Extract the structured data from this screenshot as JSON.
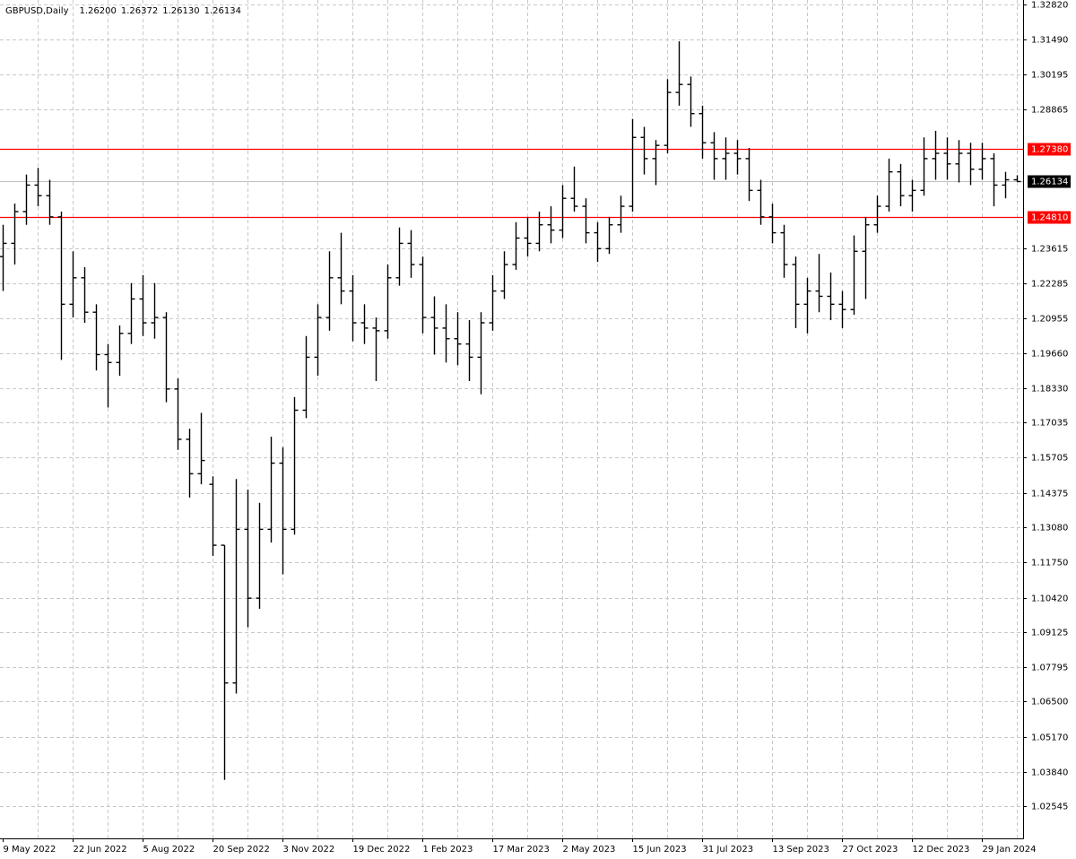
{
  "chart_data": {
    "type": "ohlc",
    "title": "GBPUSD,Daily",
    "header_values": [
      {
        "value": 1.262,
        "label": "1.26200"
      },
      {
        "value": 1.26372,
        "label": "1.26372"
      },
      {
        "value": 1.2613,
        "label": "1.26130"
      },
      {
        "value": 1.26134,
        "label": "1.26134"
      }
    ],
    "categories": [
      "9 May 2022",
      null,
      null,
      null,
      null,
      null,
      "22 Jun 2022",
      null,
      null,
      null,
      null,
      null,
      "5 Aug 2022",
      null,
      null,
      null,
      null,
      null,
      "20 Sep 2022",
      null,
      null,
      null,
      null,
      null,
      "3 Nov 2022",
      null,
      null,
      null,
      null,
      null,
      "19 Dec 2022",
      null,
      null,
      null,
      null,
      null,
      "1 Feb 2023",
      null,
      null,
      null,
      null,
      null,
      "17 Mar 2023",
      null,
      null,
      null,
      null,
      null,
      "2 May 2023",
      null,
      null,
      null,
      null,
      null,
      "15 Jun 2023",
      null,
      null,
      null,
      null,
      null,
      "31 Jul 2023",
      null,
      null,
      null,
      null,
      null,
      "13 Sep 2023",
      null,
      null,
      null,
      null,
      null,
      "27 Oct 2023",
      null,
      null,
      null,
      null,
      null,
      "12 Dec 2023",
      null,
      null,
      null,
      null,
      null,
      "29 Jan 2024",
      null,
      null,
      null
    ],
    "open": [
      1.233,
      1.238,
      1.25,
      1.26,
      1.256,
      1.248,
      1.215,
      1.225,
      1.212,
      1.196,
      1.193,
      1.204,
      1.217,
      1.208,
      1.21,
      1.183,
      1.164,
      1.151,
      1.147,
      1.124,
      1.072,
      1.13,
      1.104,
      1.13,
      1.155,
      1.13,
      1.175,
      1.195,
      1.21,
      1.225,
      1.22,
      1.208,
      1.206,
      1.205,
      1.225,
      1.238,
      1.23,
      1.21,
      1.206,
      1.202,
      1.2,
      1.195,
      1.208,
      1.22,
      1.23,
      1.24,
      1.238,
      1.245,
      1.243,
      1.255,
      1.252,
      1.242,
      1.236,
      1.245,
      1.252,
      1.278,
      1.27,
      1.275,
      1.295,
      1.298,
      1.287,
      1.276,
      1.27,
      1.272,
      1.27,
      1.258,
      1.248,
      1.242,
      1.23,
      1.215,
      1.22,
      1.218,
      1.215,
      1.213,
      1.235,
      1.245,
      1.252,
      1.265,
      1.256,
      1.258,
      1.27,
      1.272,
      1.268,
      1.272,
      1.266,
      1.27,
      1.26,
      1.262
    ],
    "high": [
      1.245,
      1.253,
      1.264,
      1.2665,
      1.262,
      1.25,
      1.235,
      1.229,
      1.215,
      1.2,
      1.207,
      1.223,
      1.226,
      1.223,
      1.212,
      1.187,
      1.168,
      1.174,
      1.15,
      1.124,
      1.149,
      1.145,
      1.14,
      1.165,
      1.161,
      1.18,
      1.203,
      1.215,
      1.235,
      1.242,
      1.226,
      1.215,
      1.21,
      1.23,
      1.244,
      1.243,
      1.233,
      1.218,
      1.215,
      1.212,
      1.209,
      1.212,
      1.226,
      1.235,
      1.246,
      1.248,
      1.25,
      1.252,
      1.26,
      1.267,
      1.255,
      1.246,
      1.248,
      1.256,
      1.285,
      1.282,
      1.277,
      1.3,
      1.3143,
      1.301,
      1.29,
      1.28,
      1.278,
      1.277,
      1.274,
      1.262,
      1.253,
      1.245,
      1.233,
      1.225,
      1.234,
      1.227,
      1.22,
      1.241,
      1.248,
      1.256,
      1.27,
      1.268,
      1.262,
      1.278,
      1.2805,
      1.278,
      1.277,
      1.276,
      1.276,
      1.272,
      1.265,
      1.26372
    ],
    "low": [
      1.22,
      1.23,
      1.245,
      1.252,
      1.245,
      1.194,
      1.21,
      1.208,
      1.19,
      1.176,
      1.188,
      1.2,
      1.203,
      1.202,
      1.178,
      1.16,
      1.142,
      1.147,
      1.12,
      1.0354,
      1.068,
      1.093,
      1.1,
      1.125,
      1.113,
      1.128,
      1.172,
      1.188,
      1.205,
      1.215,
      1.201,
      1.2,
      1.186,
      1.202,
      1.222,
      1.225,
      1.204,
      1.196,
      1.193,
      1.192,
      1.186,
      1.181,
      1.205,
      1.217,
      1.228,
      1.233,
      1.235,
      1.238,
      1.24,
      1.25,
      1.238,
      1.231,
      1.234,
      1.242,
      1.25,
      1.264,
      1.26,
      1.272,
      1.29,
      1.282,
      1.27,
      1.262,
      1.262,
      1.264,
      1.254,
      1.245,
      1.238,
      1.225,
      1.206,
      1.204,
      1.212,
      1.209,
      1.206,
      1.211,
      1.217,
      1.242,
      1.25,
      1.252,
      1.25,
      1.256,
      1.262,
      1.262,
      1.261,
      1.26,
      1.262,
      1.252,
      1.255,
      1.2613
    ],
    "close": [
      1.238,
      1.25,
      1.26,
      1.256,
      1.248,
      1.215,
      1.225,
      1.212,
      1.196,
      1.193,
      1.204,
      1.217,
      1.208,
      1.21,
      1.183,
      1.164,
      1.151,
      1.156,
      1.124,
      1.072,
      1.13,
      1.104,
      1.13,
      1.155,
      1.13,
      1.175,
      1.195,
      1.21,
      1.225,
      1.22,
      1.208,
      1.206,
      1.205,
      1.225,
      1.238,
      1.23,
      1.21,
      1.206,
      1.202,
      1.2,
      1.195,
      1.208,
      1.22,
      1.23,
      1.24,
      1.238,
      1.245,
      1.243,
      1.255,
      1.252,
      1.242,
      1.236,
      1.245,
      1.252,
      1.278,
      1.27,
      1.275,
      1.295,
      1.298,
      1.287,
      1.276,
      1.27,
      1.272,
      1.27,
      1.258,
      1.248,
      1.242,
      1.23,
      1.215,
      1.22,
      1.218,
      1.215,
      1.213,
      1.235,
      1.245,
      1.252,
      1.265,
      1.256,
      1.258,
      1.27,
      1.272,
      1.268,
      1.272,
      1.266,
      1.27,
      1.26,
      1.262,
      1.26134
    ],
    "color": "#000000",
    "ylim": [
      1.0133,
      1.3299
    ],
    "yticks": [
      {
        "value": 1.3282,
        "label": "1.32820"
      },
      {
        "value": 1.3149,
        "label": "1.31490"
      },
      1.30195,
      1.28865,
      1.23615,
      1.22285,
      1.20955,
      {
        "value": 1.1966,
        "label": "1.19660"
      },
      {
        "value": 1.1833,
        "label": "1.18330"
      },
      1.17035,
      1.15705,
      1.14375,
      {
        "value": 1.1308,
        "label": "1.13080"
      },
      {
        "value": 1.1175,
        "label": "1.11750"
      },
      {
        "value": 1.1042,
        "label": "1.10420"
      },
      1.09125,
      1.07795,
      {
        "value": 1.065,
        "label": "1.06500"
      },
      {
        "value": 1.0517,
        "label": "1.05170"
      },
      {
        "value": 1.0384,
        "label": "1.03840"
      },
      1.02545
    ],
    "grid": true,
    "hlines": [
      {
        "value": 1.2738,
        "label": "1.27380",
        "color": "#ff0000"
      },
      {
        "value": 1.2481,
        "label": "1.24810",
        "color": "#ff0000"
      }
    ],
    "last_price": {
      "value": 1.26134,
      "label": "1.26134"
    }
  }
}
